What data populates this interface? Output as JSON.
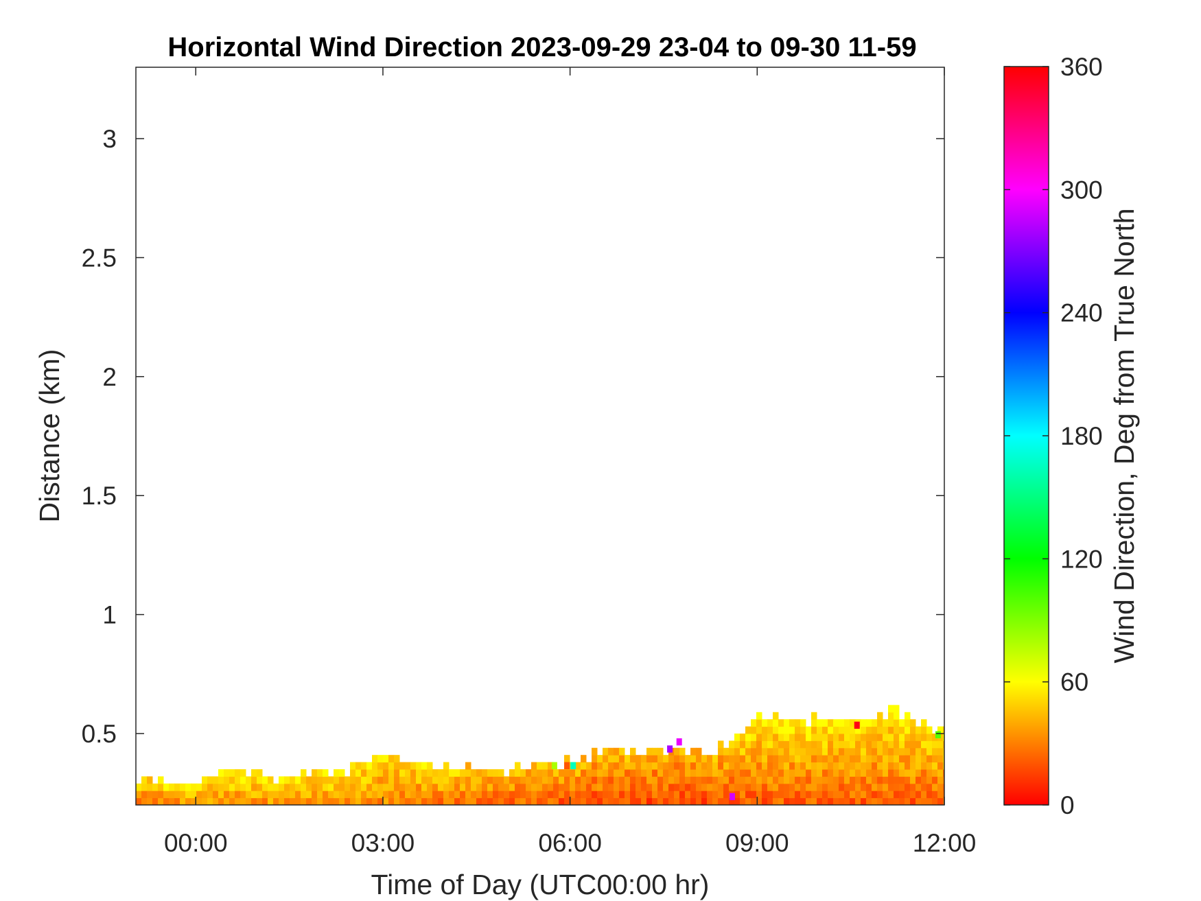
{
  "chart_data": {
    "type": "heatmap",
    "title": "Horizontal Wind Direction 2023-09-29 23-04 to 09-30 11-59",
    "xlabel": "Time of Day (UTC00:00 hr)",
    "ylabel": "Distance (km)",
    "x_unit": "hours relative to 2023-09-30 00:00 UTC",
    "xlim": [
      -0.96,
      12.0
    ],
    "ylim": [
      0.2,
      3.3
    ],
    "x_ticks": [
      {
        "value": 0,
        "label": "00:00"
      },
      {
        "value": 3,
        "label": "03:00"
      },
      {
        "value": 6,
        "label": "06:00"
      },
      {
        "value": 9,
        "label": "09:00"
      },
      {
        "value": 12,
        "label": "12:00"
      }
    ],
    "y_ticks": [
      {
        "value": 0.5,
        "label": "0.5"
      },
      {
        "value": 1,
        "label": "1"
      },
      {
        "value": 1.5,
        "label": "1.5"
      },
      {
        "value": 2,
        "label": "2"
      },
      {
        "value": 2.5,
        "label": "2.5"
      },
      {
        "value": 3,
        "label": "3"
      }
    ],
    "colorbar": {
      "label": "Wind Direction, Deg from True North",
      "range": [
        0,
        360
      ],
      "ticks": [
        {
          "value": 0,
          "label": "0"
        },
        {
          "value": 60,
          "label": "60"
        },
        {
          "value": 120,
          "label": "120"
        },
        {
          "value": 180,
          "label": "180"
        },
        {
          "value": 240,
          "label": "240"
        },
        {
          "value": 300,
          "label": "300"
        },
        {
          "value": 360,
          "label": "360"
        }
      ],
      "colormap": "hsv-like (red at 0 and 360, yellow 60, green 120, cyan 180, blue 240, magenta 300)"
    },
    "data_region": {
      "cell_height_km": 0.03,
      "top_height_profile": [
        {
          "hour": -0.96,
          "top_km": 0.27
        },
        {
          "hour": -0.8,
          "top_km": 0.3
        },
        {
          "hour": -0.5,
          "top_km": 0.27
        },
        {
          "hour": 0.2,
          "top_km": 0.3
        },
        {
          "hour": 0.4,
          "top_km": 0.33
        },
        {
          "hour": 1.0,
          "top_km": 0.33
        },
        {
          "hour": 1.2,
          "top_km": 0.3
        },
        {
          "hour": 2.4,
          "top_km": 0.33
        },
        {
          "hour": 2.6,
          "top_km": 0.37
        },
        {
          "hour": 3.0,
          "top_km": 0.4
        },
        {
          "hour": 3.4,
          "top_km": 0.37
        },
        {
          "hour": 4.0,
          "top_km": 0.35
        },
        {
          "hour": 5.0,
          "top_km": 0.33
        },
        {
          "hour": 5.4,
          "top_km": 0.35
        },
        {
          "hour": 6.2,
          "top_km": 0.37
        },
        {
          "hour": 6.5,
          "top_km": 0.43
        },
        {
          "hour": 7.2,
          "top_km": 0.41
        },
        {
          "hour": 7.8,
          "top_km": 0.43
        },
        {
          "hour": 8.2,
          "top_km": 0.41
        },
        {
          "hour": 8.6,
          "top_km": 0.47
        },
        {
          "hour": 9.0,
          "top_km": 0.57
        },
        {
          "hour": 9.6,
          "top_km": 0.55
        },
        {
          "hour": 10.5,
          "top_km": 0.53
        },
        {
          "hour": 11.2,
          "top_km": 0.58
        },
        {
          "hour": 11.6,
          "top_km": 0.52
        },
        {
          "hour": 12.0,
          "top_km": 0.5
        }
      ],
      "direction_profile_deg": [
        {
          "hour": -0.96,
          "low": 15,
          "high": 50
        },
        {
          "hour": 0.0,
          "low": 25,
          "high": 58
        },
        {
          "hour": 2.0,
          "low": 25,
          "high": 55
        },
        {
          "hour": 4.0,
          "low": 18,
          "high": 50
        },
        {
          "hour": 6.0,
          "low": 8,
          "high": 45
        },
        {
          "hour": 8.0,
          "low": 3,
          "high": 42
        },
        {
          "hour": 9.0,
          "low": 3,
          "high": 58
        },
        {
          "hour": 12.0,
          "low": 5,
          "high": 55
        }
      ],
      "outliers": [
        {
          "hour": 7.6,
          "height_km": 0.42,
          "deg": 280
        },
        {
          "hour": 7.75,
          "height_km": 0.45,
          "deg": 295
        },
        {
          "hour": 8.6,
          "height_km": 0.22,
          "deg": 290
        },
        {
          "hour": 5.75,
          "height_km": 0.35,
          "deg": 80
        },
        {
          "hour": 6.05,
          "height_km": 0.35,
          "deg": 165
        },
        {
          "hour": 5.95,
          "height_km": 0.35,
          "deg": 20
        },
        {
          "hour": 11.9,
          "height_km": 0.48,
          "deg": 100
        },
        {
          "hour": 10.6,
          "height_km": 0.52,
          "deg": 355
        }
      ]
    }
  }
}
